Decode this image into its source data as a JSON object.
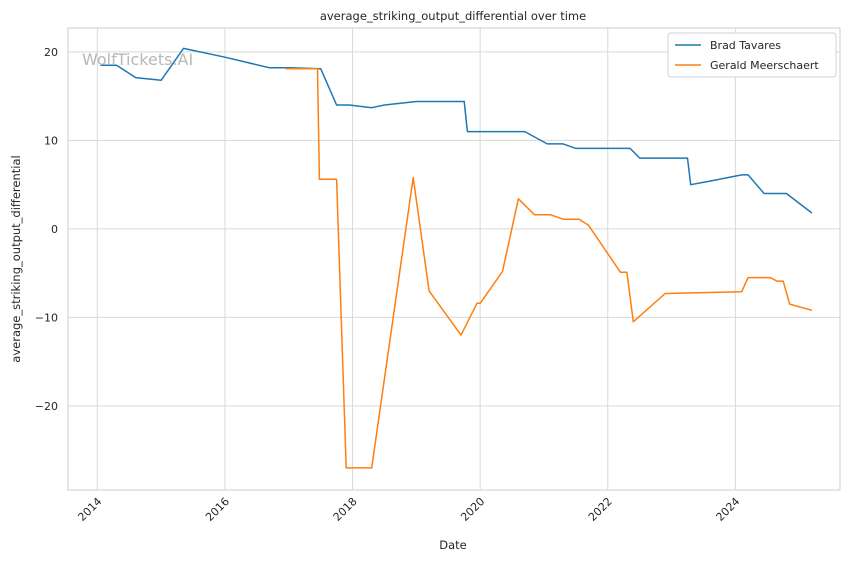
{
  "chart_data": {
    "type": "line",
    "title": "average_striking_output_differential over time",
    "xlabel": "Date",
    "ylabel": "average_striking_output_differential",
    "watermark": "WolfTickets.AI",
    "x_ticks": [
      "2014",
      "2016",
      "2018",
      "2020",
      "2022",
      "2024"
    ],
    "y_ticks": [
      20,
      10,
      0,
      -10,
      -20
    ],
    "xlim": [
      2013.54,
      2025.64
    ],
    "ylim": [
      -29.5,
      22.7
    ],
    "grid": true,
    "legend": "top-right",
    "series": [
      {
        "name": "Brad Tavares",
        "color": "#1f77b4",
        "points": [
          [
            2014.05,
            18.5
          ],
          [
            2014.3,
            18.5
          ],
          [
            2014.6,
            17.1
          ],
          [
            2015.0,
            16.8
          ],
          [
            2015.35,
            20.4
          ],
          [
            2016.0,
            19.4
          ],
          [
            2016.7,
            18.2
          ],
          [
            2017.0,
            18.2
          ],
          [
            2017.5,
            18.1
          ],
          [
            2017.75,
            14.0
          ],
          [
            2017.95,
            14.0
          ],
          [
            2018.3,
            13.7
          ],
          [
            2018.5,
            14.0
          ],
          [
            2019.0,
            14.4
          ],
          [
            2019.75,
            14.4
          ],
          [
            2019.8,
            11.0
          ],
          [
            2020.7,
            11.0
          ],
          [
            2021.05,
            9.6
          ],
          [
            2021.3,
            9.6
          ],
          [
            2021.5,
            9.1
          ],
          [
            2022.35,
            9.1
          ],
          [
            2022.5,
            8.0
          ],
          [
            2023.25,
            8.0
          ],
          [
            2023.3,
            5.0
          ],
          [
            2023.6,
            5.4
          ],
          [
            2024.1,
            6.1
          ],
          [
            2024.2,
            6.1
          ],
          [
            2024.45,
            4.0
          ],
          [
            2024.8,
            4.0
          ],
          [
            2025.2,
            1.8
          ]
        ]
      },
      {
        "name": "Gerald Meerschaert",
        "color": "#ff7f0e",
        "points": [
          [
            2016.95,
            18.1
          ],
          [
            2017.45,
            18.1
          ],
          [
            2017.48,
            5.6
          ],
          [
            2017.75,
            5.6
          ],
          [
            2017.9,
            -27.0
          ],
          [
            2018.3,
            -27.0
          ],
          [
            2018.95,
            5.8
          ],
          [
            2019.2,
            -7.0
          ],
          [
            2019.7,
            -12.0
          ],
          [
            2019.95,
            -8.4
          ],
          [
            2020.0,
            -8.4
          ],
          [
            2020.35,
            -4.8
          ],
          [
            2020.6,
            3.4
          ],
          [
            2020.85,
            1.6
          ],
          [
            2021.1,
            1.6
          ],
          [
            2021.3,
            1.1
          ],
          [
            2021.55,
            1.1
          ],
          [
            2021.7,
            0.4
          ],
          [
            2022.2,
            -4.9
          ],
          [
            2022.3,
            -4.9
          ],
          [
            2022.4,
            -10.5
          ],
          [
            2022.9,
            -7.3
          ],
          [
            2023.5,
            -7.2
          ],
          [
            2024.1,
            -7.1
          ],
          [
            2024.2,
            -5.5
          ],
          [
            2024.35,
            -5.5
          ],
          [
            2024.55,
            -5.5
          ],
          [
            2024.65,
            -5.9
          ],
          [
            2024.75,
            -5.9
          ],
          [
            2024.85,
            -8.5
          ],
          [
            2025.2,
            -9.2
          ]
        ]
      }
    ]
  }
}
